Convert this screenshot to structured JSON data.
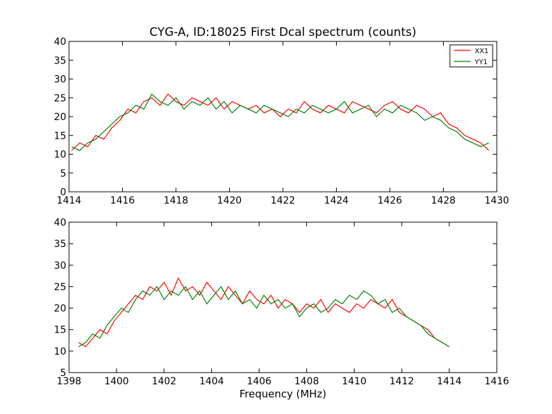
{
  "figure": {
    "title": "CYG-A, ID:18025 First Dcal spectrum (counts)",
    "xlabel": "Frequency (MHz)"
  },
  "colors": {
    "xx1": "#ff0000",
    "yy1": "#008000",
    "axes": "#000000",
    "background": "#ffffff"
  },
  "chart_data": [
    {
      "type": "line",
      "title": "CYG-A, ID:18025 First Dcal spectrum (counts)",
      "xlabel": "",
      "ylabel": "",
      "xlim": [
        1414,
        1430
      ],
      "ylim": [
        0,
        40
      ],
      "xticks": [
        "1414",
        "1416",
        "1418",
        "1420",
        "1422",
        "1424",
        "1426",
        "1428",
        "1430"
      ],
      "yticks": [
        "0",
        "5",
        "10",
        "15",
        "20",
        "25",
        "30",
        "35",
        "40"
      ],
      "grid": false,
      "legend_position": "top-right",
      "legend": [
        "XX1",
        "YY1"
      ],
      "x": [
        1414.1,
        1414.4,
        1414.7,
        1415.0,
        1415.3,
        1415.6,
        1415.9,
        1416.2,
        1416.5,
        1416.8,
        1417.1,
        1417.4,
        1417.7,
        1418.0,
        1418.3,
        1418.6,
        1418.9,
        1419.2,
        1419.5,
        1419.8,
        1420.1,
        1420.4,
        1420.7,
        1421.0,
        1421.3,
        1421.6,
        1421.9,
        1422.2,
        1422.5,
        1422.8,
        1423.1,
        1423.4,
        1423.7,
        1424.0,
        1424.3,
        1424.6,
        1424.9,
        1425.2,
        1425.5,
        1425.8,
        1426.1,
        1426.4,
        1426.7,
        1427.0,
        1427.3,
        1427.6,
        1427.9,
        1428.2,
        1428.5,
        1428.8,
        1429.1,
        1429.4,
        1429.7
      ],
      "series": [
        {
          "name": "XX1",
          "color": "#ff0000",
          "values": [
            11,
            13,
            12,
            15,
            14,
            17,
            19,
            22,
            21,
            24,
            25,
            23,
            26,
            24,
            23,
            25,
            24,
            23,
            25,
            22,
            24,
            23,
            22,
            23,
            21,
            22,
            20,
            22,
            21,
            24,
            22,
            21,
            23,
            22,
            21,
            24,
            23,
            22,
            21,
            23,
            24,
            22,
            21,
            23,
            22,
            20,
            21,
            18,
            17,
            15,
            14,
            13,
            11
          ]
        },
        {
          "name": "YY1",
          "color": "#008000",
          "values": [
            12,
            11,
            13,
            14,
            16,
            18,
            20,
            21,
            23,
            22,
            26,
            24,
            23,
            25,
            22,
            24,
            23,
            25,
            22,
            24,
            21,
            23,
            22,
            21,
            23,
            22,
            21,
            20,
            22,
            21,
            23,
            22,
            21,
            22,
            24,
            21,
            22,
            23,
            20,
            22,
            21,
            23,
            22,
            21,
            19,
            20,
            19,
            17,
            16,
            14,
            13,
            12,
            13
          ]
        }
      ]
    },
    {
      "type": "line",
      "title": "",
      "xlabel": "Frequency (MHz)",
      "ylabel": "",
      "xlim": [
        1398,
        1416
      ],
      "ylim": [
        5,
        40
      ],
      "xticks": [
        "1398",
        "1400",
        "1402",
        "1404",
        "1406",
        "1408",
        "1410",
        "1412",
        "1414",
        "1416"
      ],
      "yticks": [
        "5",
        "10",
        "15",
        "20",
        "25",
        "30",
        "35",
        "40"
      ],
      "grid": false,
      "x": [
        1398.4,
        1398.7,
        1399.0,
        1399.3,
        1399.6,
        1399.9,
        1400.2,
        1400.5,
        1400.8,
        1401.1,
        1401.4,
        1401.7,
        1402.0,
        1402.3,
        1402.6,
        1402.9,
        1403.2,
        1403.5,
        1403.8,
        1404.1,
        1404.4,
        1404.7,
        1405.0,
        1405.3,
        1405.6,
        1405.9,
        1406.2,
        1406.5,
        1406.8,
        1407.1,
        1407.4,
        1407.7,
        1408.0,
        1408.3,
        1408.6,
        1408.9,
        1409.2,
        1409.5,
        1409.8,
        1410.1,
        1410.4,
        1410.7,
        1411.0,
        1411.3,
        1411.6,
        1411.9,
        1412.2,
        1412.5,
        1412.8,
        1413.1,
        1413.4,
        1413.7,
        1414.0
      ],
      "series": [
        {
          "name": "XX1",
          "color": "#ff0000",
          "values": [
            12,
            11,
            13,
            15,
            14,
            17,
            19,
            21,
            23,
            22,
            25,
            24,
            26,
            23,
            27,
            24,
            25,
            23,
            26,
            24,
            22,
            25,
            23,
            21,
            24,
            22,
            21,
            23,
            20,
            22,
            21,
            19,
            21,
            20,
            22,
            19,
            21,
            20,
            19,
            21,
            20,
            22,
            21,
            20,
            22,
            19,
            18,
            17,
            16,
            15,
            13,
            12,
            11
          ]
        },
        {
          "name": "YY1",
          "color": "#008000",
          "values": [
            11,
            12,
            14,
            13,
            16,
            18,
            20,
            19,
            22,
            24,
            23,
            25,
            22,
            24,
            23,
            25,
            22,
            24,
            21,
            23,
            25,
            22,
            24,
            21,
            22,
            20,
            23,
            21,
            22,
            20,
            21,
            18,
            20,
            21,
            19,
            20,
            22,
            21,
            23,
            22,
            24,
            23,
            21,
            22,
            19,
            20,
            18,
            17,
            16,
            14,
            13,
            12,
            11
          ]
        }
      ]
    }
  ]
}
